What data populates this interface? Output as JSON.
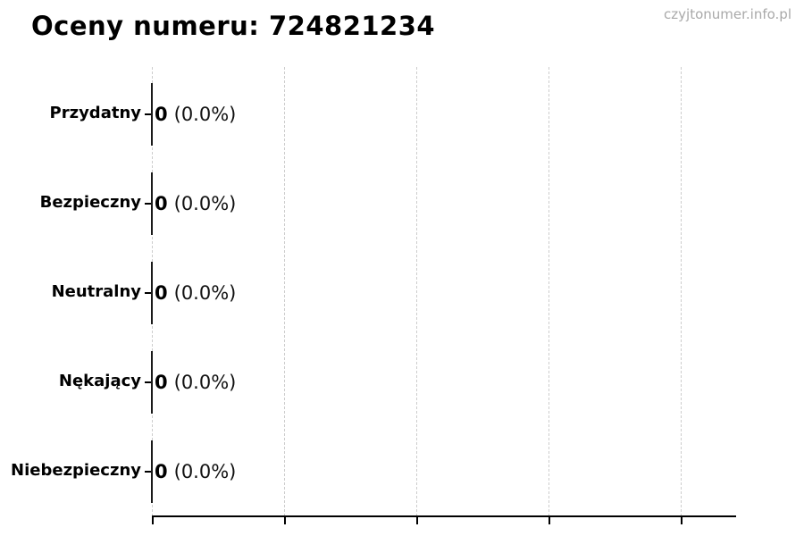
{
  "page": {
    "title": "Oceny numeru: 724821234",
    "watermark": "czyjtonumer.info.pl"
  },
  "chart_data": {
    "type": "bar",
    "orientation": "horizontal",
    "title": "Oceny numeru: 724821234",
    "categories": [
      "Przydatny",
      "Bezpieczny",
      "Neutralny",
      "Nękający",
      "Niebezpieczny"
    ],
    "values": [
      0,
      0,
      0,
      0,
      0
    ],
    "percent_labels": [
      "(0.0%)",
      "(0.0%)",
      "(0.0%)",
      "(0.0%)",
      "(0.0%)"
    ],
    "value_label_format": "count (percent)",
    "xlabel": "",
    "ylabel": "",
    "x_tick_labels_visible": false,
    "grid": "vertical dashed gridlines, 5 lines evenly spaced",
    "legend": "none",
    "colors": {
      "bar_edge": "#1a1a1a",
      "gridline": "#cdcdcd",
      "axis": "#000000",
      "text": "#000000",
      "watermark": "#a9a9a9",
      "background": "#ffffff"
    }
  }
}
